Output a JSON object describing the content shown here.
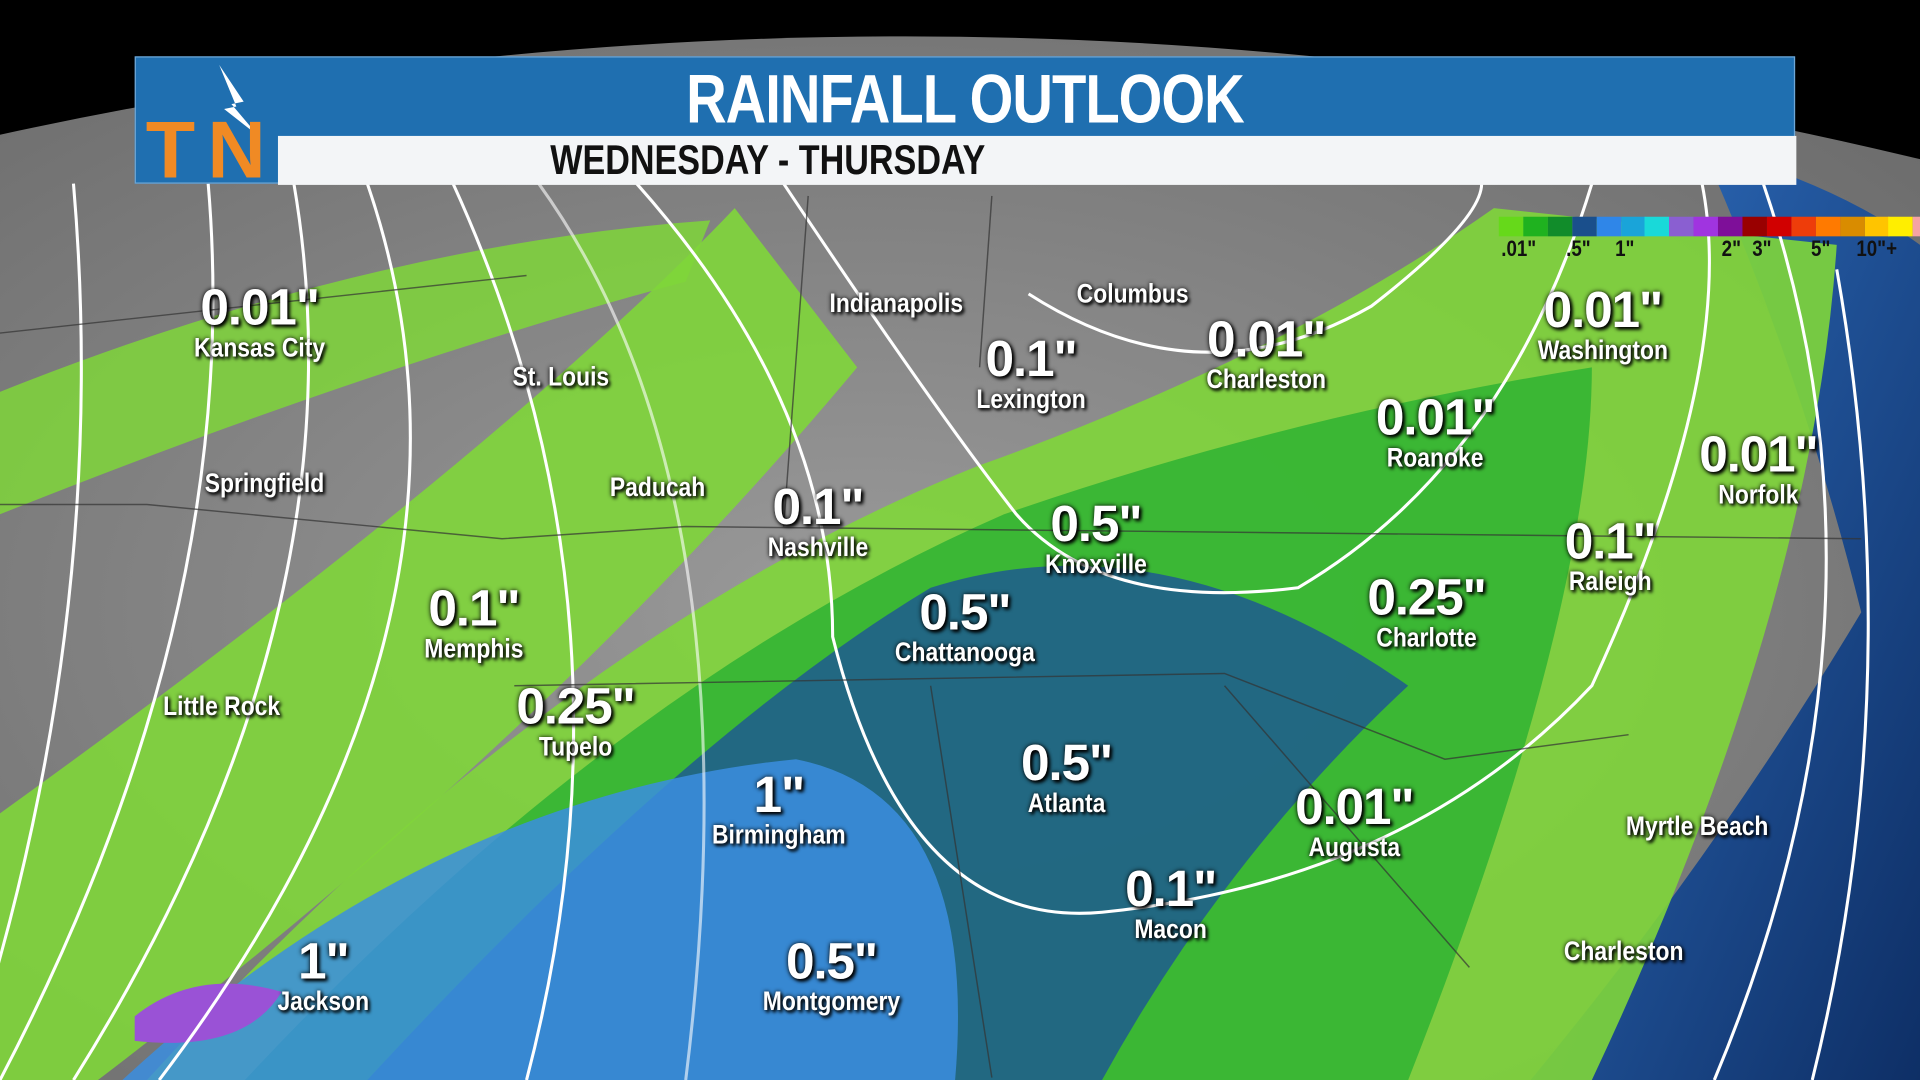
{
  "header": {
    "title": "RAINFALL OUTLOOK",
    "subtitle": "WEDNESDAY - THURSDAY",
    "logo_text": "TN",
    "logo_color": "#f08a24"
  },
  "legend": {
    "colors": [
      "#66d91a",
      "#1fb21f",
      "#118c2a",
      "#1a4f8c",
      "#2f86e8",
      "#1aa4d9",
      "#19d9d9",
      "#8a5fd1",
      "#a034e0",
      "#7e0f99",
      "#990000",
      "#d10000",
      "#ee3d0a",
      "#ff7a00",
      "#d98c00",
      "#ffc400",
      "#ffee00",
      "#f5a3a3"
    ],
    "labels": [
      ".01\"",
      ".5\"",
      "1\"",
      "2\"",
      "3\"",
      "5\"",
      "10\"+"
    ]
  },
  "cities": [
    {
      "name": "Kansas City",
      "value": "0.01\""
    },
    {
      "name": "St. Louis",
      "value": ""
    },
    {
      "name": "Springfield",
      "value": ""
    },
    {
      "name": "Paducah",
      "value": ""
    },
    {
      "name": "Indianapolis",
      "value": ""
    },
    {
      "name": "Columbus",
      "value": ""
    },
    {
      "name": "Lexington",
      "value": "0.1\""
    },
    {
      "name": "Charleston",
      "value": "0.01\""
    },
    {
      "name": "Washington",
      "value": "0.01\""
    },
    {
      "name": "Roanoke",
      "value": "0.01\""
    },
    {
      "name": "Norfolk",
      "value": "0.01\""
    },
    {
      "name": "Nashville",
      "value": "0.1\""
    },
    {
      "name": "Knoxville",
      "value": "0.5\""
    },
    {
      "name": "Raleigh",
      "value": "0.1\""
    },
    {
      "name": "Memphis",
      "value": "0.1\""
    },
    {
      "name": "Chattanooga",
      "value": "0.5\""
    },
    {
      "name": "Charlotte",
      "value": "0.25\""
    },
    {
      "name": "Little Rock",
      "value": ""
    },
    {
      "name": "Tupelo",
      "value": "0.25\""
    },
    {
      "name": "Birmingham",
      "value": "1\""
    },
    {
      "name": "Atlanta",
      "value": "0.5\""
    },
    {
      "name": "Augusta",
      "value": "0.01\""
    },
    {
      "name": "Macon",
      "value": "0.1\""
    },
    {
      "name": "Myrtle Beach",
      "value": ""
    },
    {
      "name": "Charleston",
      "value": ""
    },
    {
      "name": "Jackson",
      "value": "1\""
    },
    {
      "name": "Montgomery",
      "value": "0.5\""
    }
  ]
}
